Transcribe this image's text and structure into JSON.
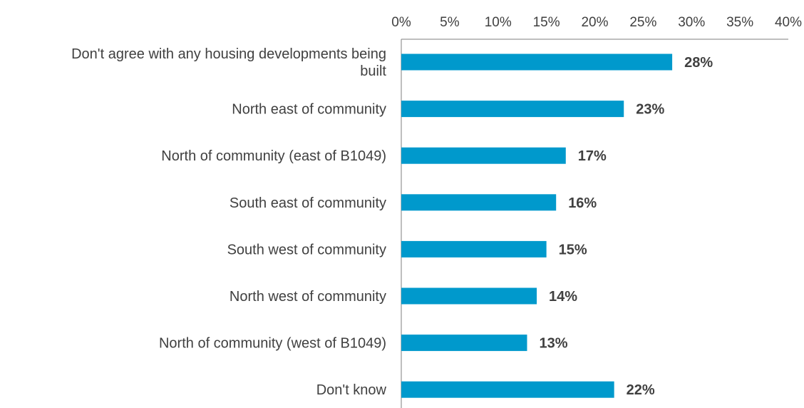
{
  "chart_data": {
    "type": "bar",
    "orientation": "horizontal",
    "title": "",
    "xlabel": "",
    "ylabel": "",
    "categories": [
      [
        "Don't agree with any housing developments being",
        "built"
      ],
      [
        "North east of community"
      ],
      [
        "North of community (east of B1049)"
      ],
      [
        "South east of community"
      ],
      [
        "South west of community"
      ],
      [
        "North west of community"
      ],
      [
        "North of community (west of B1049)"
      ],
      [
        "Don't know"
      ]
    ],
    "values": [
      28,
      23,
      17,
      16,
      15,
      14,
      13,
      22
    ],
    "value_labels": [
      "28%",
      "23%",
      "17%",
      "16%",
      "15%",
      "14%",
      "13%",
      "22%"
    ],
    "xlim": [
      0,
      40
    ],
    "xticks": [
      0,
      5,
      10,
      15,
      20,
      25,
      30,
      35,
      40
    ],
    "xtick_labels": [
      "0%",
      "5%",
      "10%",
      "15%",
      "20%",
      "25%",
      "30%",
      "35%",
      "40%"
    ],
    "x_axis_position": "top",
    "grid": false,
    "legend": "none",
    "bar_color": "#0099CC",
    "axis_color": "#7f7f7f",
    "text_color": "#404040"
  }
}
